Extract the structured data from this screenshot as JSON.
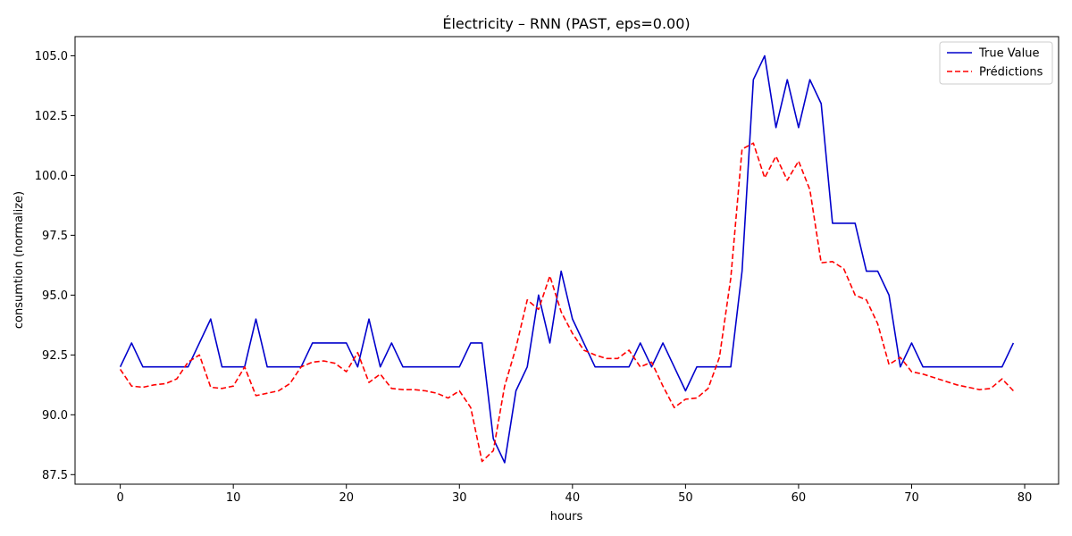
{
  "chart_data": {
    "type": "line",
    "title": "Électricity – RNN (PAST, eps=0.00)",
    "xlabel": "hours",
    "ylabel": "consumtion (normalize)",
    "xlim": [
      -4,
      83
    ],
    "ylim": [
      87.1,
      105.8
    ],
    "xticks": [
      0,
      10,
      20,
      30,
      40,
      50,
      60,
      70,
      80
    ],
    "yticks": [
      87.5,
      90.0,
      92.5,
      95.0,
      97.5,
      100.0,
      102.5,
      105.0
    ],
    "ytick_labels": [
      "87.5",
      "90.0",
      "92.5",
      "95.0",
      "97.5",
      "100.0",
      "102.5",
      "105.0"
    ],
    "grid": false,
    "legend_position": "top-right",
    "series": [
      {
        "name": "True Value",
        "color": "#0000cc",
        "style": "solid",
        "values": [
          92,
          93,
          92,
          92,
          92,
          92,
          92,
          93,
          94,
          92,
          92,
          92,
          94,
          92,
          92,
          92,
          92,
          93,
          93,
          93,
          93,
          92,
          94,
          92,
          93,
          92,
          92,
          92,
          92,
          92,
          92,
          93,
          93,
          89,
          88,
          91,
          92,
          95,
          93,
          96,
          94,
          93,
          92,
          92,
          92,
          92,
          93,
          92,
          93,
          92,
          91,
          92,
          92,
          92,
          92,
          96,
          104,
          105,
          102,
          104,
          102,
          104,
          103,
          98,
          98,
          98,
          96,
          96,
          95,
          92,
          93,
          92,
          92,
          92,
          92,
          92,
          92,
          92,
          92,
          93
        ]
      },
      {
        "name": "Prédictions",
        "color": "#ff0000",
        "style": "dashed",
        "values": [
          91.9,
          91.2,
          91.15,
          91.25,
          91.3,
          91.5,
          92.2,
          92.5,
          91.15,
          91.1,
          91.2,
          92.0,
          90.8,
          90.9,
          91.0,
          91.3,
          92.0,
          92.2,
          92.25,
          92.15,
          91.8,
          92.6,
          91.35,
          91.7,
          91.1,
          91.05,
          91.05,
          91.0,
          90.9,
          90.7,
          91.0,
          90.3,
          88.05,
          88.5,
          91.2,
          92.8,
          94.8,
          94.4,
          95.8,
          94.3,
          93.4,
          92.7,
          92.5,
          92.35,
          92.35,
          92.7,
          92.0,
          92.2,
          91.2,
          90.3,
          90.65,
          90.7,
          91.1,
          92.4,
          95.7,
          101.1,
          101.35,
          99.9,
          100.8,
          99.8,
          100.6,
          99.4,
          96.35,
          96.4,
          96.1,
          95.0,
          94.8,
          93.8,
          92.1,
          92.4,
          91.8,
          91.7,
          91.55,
          91.4,
          91.25,
          91.15,
          91.05,
          91.1,
          91.5,
          91.0
        ]
      }
    ]
  }
}
